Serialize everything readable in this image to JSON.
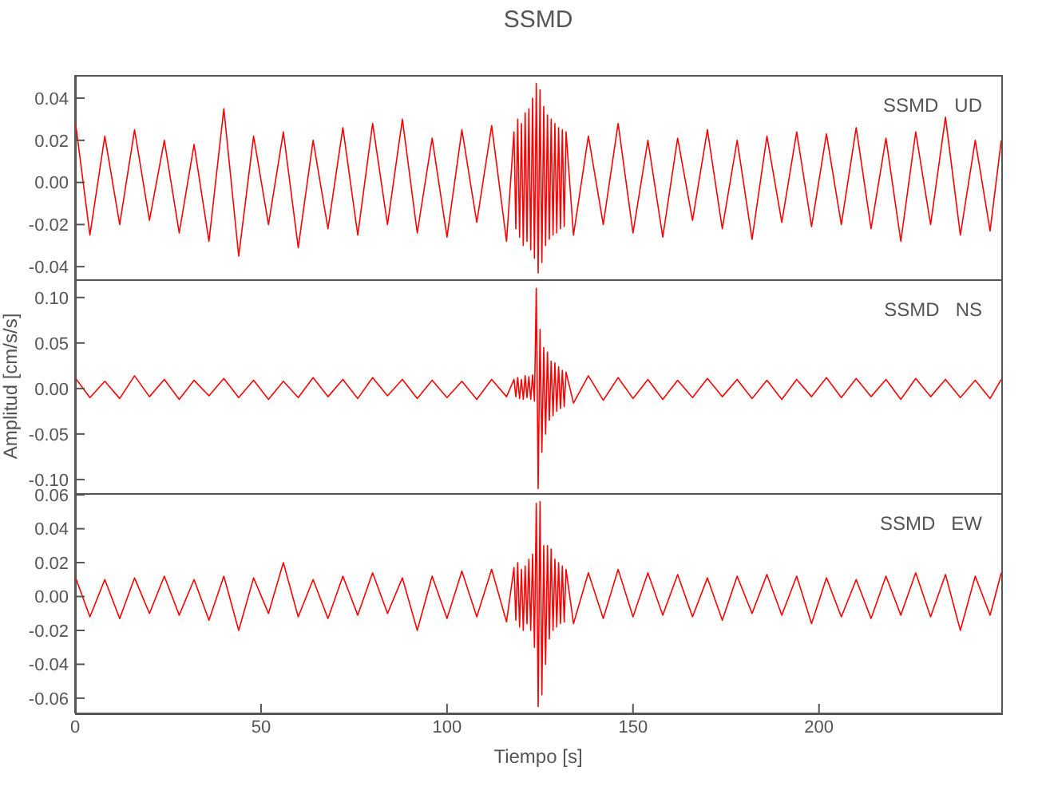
{
  "chart_data": [
    {
      "type": "line",
      "title": "SSMD",
      "annotations": [
        "SSMD   UD"
      ],
      "tick_labels": "y",
      "marker": "none",
      "x": [
        0,
        4,
        8,
        12,
        16,
        20,
        24,
        28,
        32,
        36,
        40,
        44,
        48,
        52,
        56,
        60,
        64,
        68,
        72,
        76,
        80,
        84,
        88,
        92,
        96,
        100,
        104,
        108,
        112,
        116,
        118,
        118.5,
        119,
        119.5,
        120,
        120.5,
        121,
        121.5,
        122,
        122.5,
        123,
        123.5,
        124,
        124.5,
        125,
        125.5,
        126,
        126.5,
        127,
        127.5,
        128,
        128.5,
        129,
        129.5,
        130,
        130.5,
        131,
        131.5,
        132,
        134,
        138,
        142,
        146,
        150,
        154,
        158,
        162,
        166,
        170,
        174,
        178,
        182,
        186,
        190,
        194,
        198,
        202,
        206,
        210,
        214,
        218,
        222,
        226,
        230,
        234,
        238,
        242,
        246,
        249
      ],
      "xlim": [
        0,
        249
      ],
      "ylim": [
        -0.046,
        0.051
      ],
      "yticks": [
        -0.04,
        -0.02,
        {
          "value": 0,
          "label": "0.00"
        },
        0.02,
        0.04
      ],
      "series": [
        {
          "color": "#ff0000",
          "values": [
            0.03,
            -0.025,
            0.022,
            -0.02,
            0.025,
            -0.018,
            0.02,
            -0.024,
            0.018,
            -0.028,
            0.035,
            -0.035,
            0.022,
            -0.02,
            0.024,
            -0.031,
            0.02,
            -0.022,
            0.026,
            -0.025,
            0.028,
            -0.02,
            0.03,
            -0.024,
            0.021,
            -0.026,
            0.025,
            -0.019,
            0.027,
            -0.028,
            0.024,
            -0.022,
            0.03,
            -0.026,
            0.028,
            -0.03,
            0.033,
            -0.028,
            0.035,
            -0.032,
            0.04,
            -0.036,
            0.047,
            -0.043,
            0.044,
            -0.038,
            0.036,
            -0.03,
            0.032,
            -0.027,
            0.03,
            -0.025,
            0.028,
            -0.024,
            0.026,
            -0.022,
            0.025,
            -0.021,
            0.024,
            -0.025,
            0.022,
            -0.02,
            0.028,
            -0.024,
            0.02,
            -0.026,
            0.021,
            -0.018,
            0.025,
            -0.022,
            0.02,
            -0.027,
            0.022,
            -0.019,
            0.024,
            -0.021,
            0.023,
            -0.02,
            0.026,
            -0.022,
            0.021,
            -0.028,
            0.024,
            -0.02,
            0.031,
            -0.025,
            0.02,
            -0.023,
            0.02
          ]
        }
      ]
    },
    {
      "type": "line",
      "ylabel": "Amplitud [cm/s/s]",
      "annotations": [
        "SSMD   NS"
      ],
      "tick_labels": "y",
      "marker": "none",
      "x": [
        0,
        4,
        8,
        12,
        16,
        20,
        24,
        28,
        32,
        36,
        40,
        44,
        48,
        52,
        56,
        60,
        64,
        68,
        72,
        76,
        80,
        84,
        88,
        92,
        96,
        100,
        104,
        108,
        112,
        116,
        118,
        118.5,
        119,
        119.5,
        120,
        120.5,
        121,
        121.5,
        122,
        122.5,
        123,
        123.5,
        124,
        124.5,
        125,
        125.5,
        126,
        126.5,
        127,
        127.5,
        128,
        128.5,
        129,
        129.5,
        130,
        130.5,
        131,
        131.5,
        132,
        134,
        138,
        142,
        146,
        150,
        154,
        158,
        162,
        166,
        170,
        174,
        178,
        182,
        186,
        190,
        194,
        198,
        202,
        206,
        210,
        214,
        218,
        222,
        226,
        230,
        234,
        238,
        242,
        246,
        249
      ],
      "xlim": [
        0,
        249
      ],
      "ylim": [
        -0.115,
        0.12
      ],
      "yticks": [
        {
          "value": -0.1,
          "label": "-0.10"
        },
        -0.05,
        {
          "value": 0,
          "label": "0.00"
        },
        0.05,
        {
          "value": 0.1,
          "label": "0.10"
        }
      ],
      "series": [
        {
          "color": "#ff0000",
          "values": [
            0.012,
            -0.01,
            0.008,
            -0.011,
            0.014,
            -0.009,
            0.01,
            -0.012,
            0.009,
            -0.008,
            0.011,
            -0.01,
            0.009,
            -0.012,
            0.008,
            -0.01,
            0.012,
            -0.009,
            0.01,
            -0.011,
            0.012,
            -0.008,
            0.01,
            -0.011,
            0.009,
            -0.01,
            0.008,
            -0.012,
            0.01,
            -0.009,
            0.01,
            -0.009,
            0.012,
            -0.011,
            0.01,
            -0.012,
            0.014,
            -0.01,
            0.013,
            -0.012,
            0.015,
            -0.014,
            0.11,
            -0.11,
            0.065,
            -0.07,
            0.045,
            -0.05,
            0.04,
            -0.035,
            0.03,
            -0.03,
            0.028,
            -0.025,
            0.024,
            -0.022,
            0.02,
            -0.02,
            0.018,
            -0.016,
            0.014,
            -0.013,
            0.012,
            -0.011,
            0.01,
            -0.012,
            0.009,
            -0.01,
            0.011,
            -0.009,
            0.01,
            -0.011,
            0.009,
            -0.012,
            0.01,
            -0.009,
            0.012,
            -0.01,
            0.011,
            -0.009,
            0.01,
            -0.012,
            0.011,
            -0.009,
            0.01,
            -0.01,
            0.009,
            -0.011,
            0.01
          ]
        }
      ]
    },
    {
      "type": "line",
      "xlabel": "Tiempo [s]",
      "annotations": [
        "SSMD   EW"
      ],
      "marker": "none",
      "x": [
        0,
        4,
        8,
        12,
        16,
        20,
        24,
        28,
        32,
        36,
        40,
        44,
        48,
        52,
        56,
        60,
        64,
        68,
        72,
        76,
        80,
        84,
        88,
        92,
        96,
        100,
        104,
        108,
        112,
        116,
        118,
        118.5,
        119,
        119.5,
        120,
        120.5,
        121,
        121.5,
        122,
        122.5,
        123,
        123.5,
        124,
        124.5,
        125,
        125.5,
        126,
        126.5,
        127,
        127.5,
        128,
        128.5,
        129,
        129.5,
        130,
        130.5,
        131,
        131.5,
        132,
        134,
        138,
        142,
        146,
        150,
        154,
        158,
        162,
        166,
        170,
        174,
        178,
        182,
        186,
        190,
        194,
        198,
        202,
        206,
        210,
        214,
        218,
        222,
        226,
        230,
        234,
        238,
        242,
        246,
        249
      ],
      "xlim": [
        0,
        249
      ],
      "xticks": [
        0,
        50,
        100,
        150,
        200
      ],
      "ylim": [
        -0.069,
        0.061
      ],
      "yticks": [
        -0.06,
        -0.04,
        -0.02,
        {
          "value": 0,
          "label": "0.00"
        },
        0.02,
        0.04,
        0.06
      ],
      "series": [
        {
          "color": "#ff0000",
          "values": [
            0.012,
            -0.012,
            0.01,
            -0.013,
            0.011,
            -0.01,
            0.012,
            -0.011,
            0.01,
            -0.014,
            0.012,
            -0.02,
            0.011,
            -0.01,
            0.02,
            -0.012,
            0.01,
            -0.013,
            0.012,
            -0.011,
            0.014,
            -0.01,
            0.011,
            -0.02,
            0.012,
            -0.013,
            0.015,
            -0.012,
            0.016,
            -0.015,
            0.017,
            -0.014,
            0.02,
            -0.018,
            0.016,
            -0.02,
            0.018,
            -0.016,
            0.022,
            -0.02,
            0.025,
            -0.03,
            0.055,
            -0.065,
            0.056,
            -0.058,
            0.03,
            -0.04,
            0.03,
            -0.025,
            0.028,
            -0.02,
            0.022,
            -0.018,
            0.02,
            -0.016,
            0.018,
            -0.015,
            0.016,
            -0.016,
            0.014,
            -0.013,
            0.016,
            -0.012,
            0.014,
            -0.011,
            0.013,
            -0.012,
            0.011,
            -0.014,
            0.012,
            -0.01,
            0.013,
            -0.011,
            0.012,
            -0.016,
            0.011,
            -0.012,
            0.01,
            -0.013,
            0.012,
            -0.011,
            0.014,
            -0.012,
            0.013,
            -0.02,
            0.012,
            -0.011,
            0.014
          ]
        }
      ]
    }
  ]
}
